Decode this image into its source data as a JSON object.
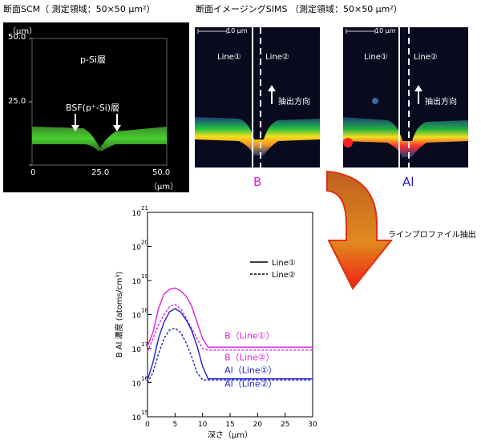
{
  "scm": {
    "title": "断面SCM（ 測定領域：50×50 μm²）",
    "unit_top": "（μm）",
    "y_ticks": [
      "50.0",
      "25.0",
      "0"
    ],
    "x_ticks": [
      "25.0",
      "50.0"
    ],
    "unit_bottom": "（μm）",
    "label_psi": "p-Si層",
    "label_bsf": "BSF(p⁺-Si)層"
  },
  "sims": {
    "title": "断面イメージングSIMS （測定領域：50×50 μm²）",
    "scale": "10 μm",
    "line1": "Line①",
    "line2": "Line②",
    "direction": "抽出方向",
    "caption_b": "B",
    "caption_al": "Al",
    "color_b": "#e020e0",
    "color_al": "#2020d0"
  },
  "arrow_label": "ラインプロファイル抽出",
  "chart_data": {
    "type": "line",
    "xlabel": "深さ（μm）",
    "ylabel": "B Al 濃度 (atoms/cm³)",
    "xlim": [
      0,
      30
    ],
    "x_ticks": [
      "0",
      "5",
      "10",
      "15",
      "20",
      "25",
      "30"
    ],
    "y_scale": "log",
    "y_ticks_exp": [
      "21",
      "20",
      "19",
      "18",
      "17",
      "16",
      "15"
    ],
    "y_base": "10",
    "legend": {
      "solid": "Line①",
      "dashed": "Line②",
      "position": "upper-right"
    },
    "series": [
      {
        "name": "B (Line①)",
        "color": "#e020e0",
        "style": "solid",
        "x": [
          0,
          1,
          2,
          3,
          4,
          5,
          6,
          7,
          8,
          9,
          10,
          11,
          15,
          20,
          25,
          30
        ],
        "y": [
          1.2e+17,
          3e+17,
          1.5e+18,
          4e+18,
          5.5e+18,
          6e+18,
          5e+18,
          3.5e+18,
          1.8e+18,
          6e+17,
          2e+17,
          1.1e+17,
          1.1e+17,
          1.1e+17,
          1.1e+17,
          1.1e+17
        ]
      },
      {
        "name": "B (Line②)",
        "color": "#e020e0",
        "style": "dashed",
        "x": [
          0,
          1,
          2,
          3,
          4,
          5,
          6,
          7,
          8,
          9,
          10,
          11,
          15,
          20,
          25,
          30
        ],
        "y": [
          8e+16,
          2e+17,
          5e+17,
          1e+18,
          1.7e+18,
          2e+18,
          1.5e+18,
          8e+17,
          4e+17,
          2e+17,
          1e+17,
          9e+16,
          9e+16,
          9e+16,
          9e+16,
          9e+16
        ]
      },
      {
        "name": "Al (Line①)",
        "color": "#2020d0",
        "style": "solid",
        "x": [
          0,
          1,
          2,
          3,
          4,
          5,
          6,
          7,
          8,
          9,
          10,
          11,
          15,
          20,
          25,
          30
        ],
        "y": [
          1.2e+16,
          4e+16,
          2e+17,
          6e+17,
          1.2e+18,
          1.5e+18,
          1.2e+18,
          7e+17,
          3.5e+17,
          1.2e+17,
          3e+16,
          1.3e+16,
          1.3e+16,
          1.3e+16,
          1.3e+16,
          1.3e+16
        ]
      },
      {
        "name": "Al (Line②)",
        "color": "#2020d0",
        "style": "dashed",
        "x": [
          0,
          1,
          2,
          3,
          4,
          5,
          6,
          7,
          8,
          9,
          10,
          11,
          15,
          20,
          25,
          30
        ],
        "y": [
          1e+16,
          2e+16,
          7e+16,
          2e+17,
          3.5e+17,
          4e+17,
          3e+17,
          1.5e+17,
          6e+16,
          2e+16,
          1.2e+16,
          1.2e+16,
          1.2e+16,
          1.2e+16,
          1.2e+16,
          1.2e+16
        ]
      }
    ],
    "annotations": [
      "B（Line①）",
      "B（Line②）",
      "Al（Line①）",
      "Al（Line②）"
    ]
  }
}
